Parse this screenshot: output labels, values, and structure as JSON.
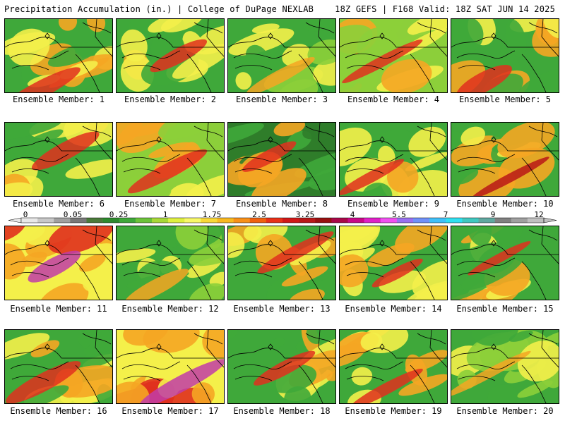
{
  "header": {
    "title": "Precipitation Accumulation (in.) | College of DuPage NEXLAB",
    "run_info": "18Z GEFS | F168 Valid: 18Z SAT JUN 14 2025"
  },
  "colorbar": {
    "labels": [
      "0",
      "0.05",
      "0.25",
      "1",
      "1.75",
      "2.5",
      "3.25",
      "4",
      "5.5",
      "7",
      "9",
      "12"
    ],
    "colors": [
      "#e8e8e8",
      "#c8c8c8",
      "#a0a0a0",
      "#787878",
      "#4a7a3a",
      "#2e8a2e",
      "#3fa83a",
      "#6cc23a",
      "#a8d838",
      "#e0f040",
      "#f8f868",
      "#f8d838",
      "#f8b820",
      "#f89018",
      "#f06010",
      "#e83018",
      "#d01818",
      "#b81818",
      "#981010",
      "#a80848",
      "#c80888",
      "#e020c8",
      "#f050f0",
      "#9870f0",
      "#7090f8",
      "#40c0f8",
      "#30e0f0",
      "#40c8c0",
      "#60a8a0",
      "#808080",
      "#a0a0a0",
      "#c0c0c0"
    ]
  },
  "members": [
    {
      "caption": "Ensemble Member: 1"
    },
    {
      "caption": "Ensemble Member: 2"
    },
    {
      "caption": "Ensemble Member: 3"
    },
    {
      "caption": "Ensemble Member: 4"
    },
    {
      "caption": "Ensemble Member: 5"
    },
    {
      "caption": "Ensemble Member: 6"
    },
    {
      "caption": "Ensemble Member: 7"
    },
    {
      "caption": "Ensemble Member: 8"
    },
    {
      "caption": "Ensemble Member: 9"
    },
    {
      "caption": "Ensemble Member: 10"
    },
    {
      "caption": "Ensemble Member: 11"
    },
    {
      "caption": "Ensemble Member: 12"
    },
    {
      "caption": "Ensemble Member: 13"
    },
    {
      "caption": "Ensemble Member: 14"
    },
    {
      "caption": "Ensemble Member: 15"
    },
    {
      "caption": "Ensemble Member: 16"
    },
    {
      "caption": "Ensemble Member: 17"
    },
    {
      "caption": "Ensemble Member: 18"
    },
    {
      "caption": "Ensemble Member: 19"
    },
    {
      "caption": "Ensemble Member: 20"
    }
  ],
  "palette": {
    "dark_green": "#2f7d2a",
    "green": "#3fa83a",
    "light_green": "#8ccf3a",
    "yellow": "#f4f04a",
    "orange": "#f5a623",
    "red": "#e0301e",
    "dark_red": "#b81818",
    "magenta": "#c13ca8"
  }
}
